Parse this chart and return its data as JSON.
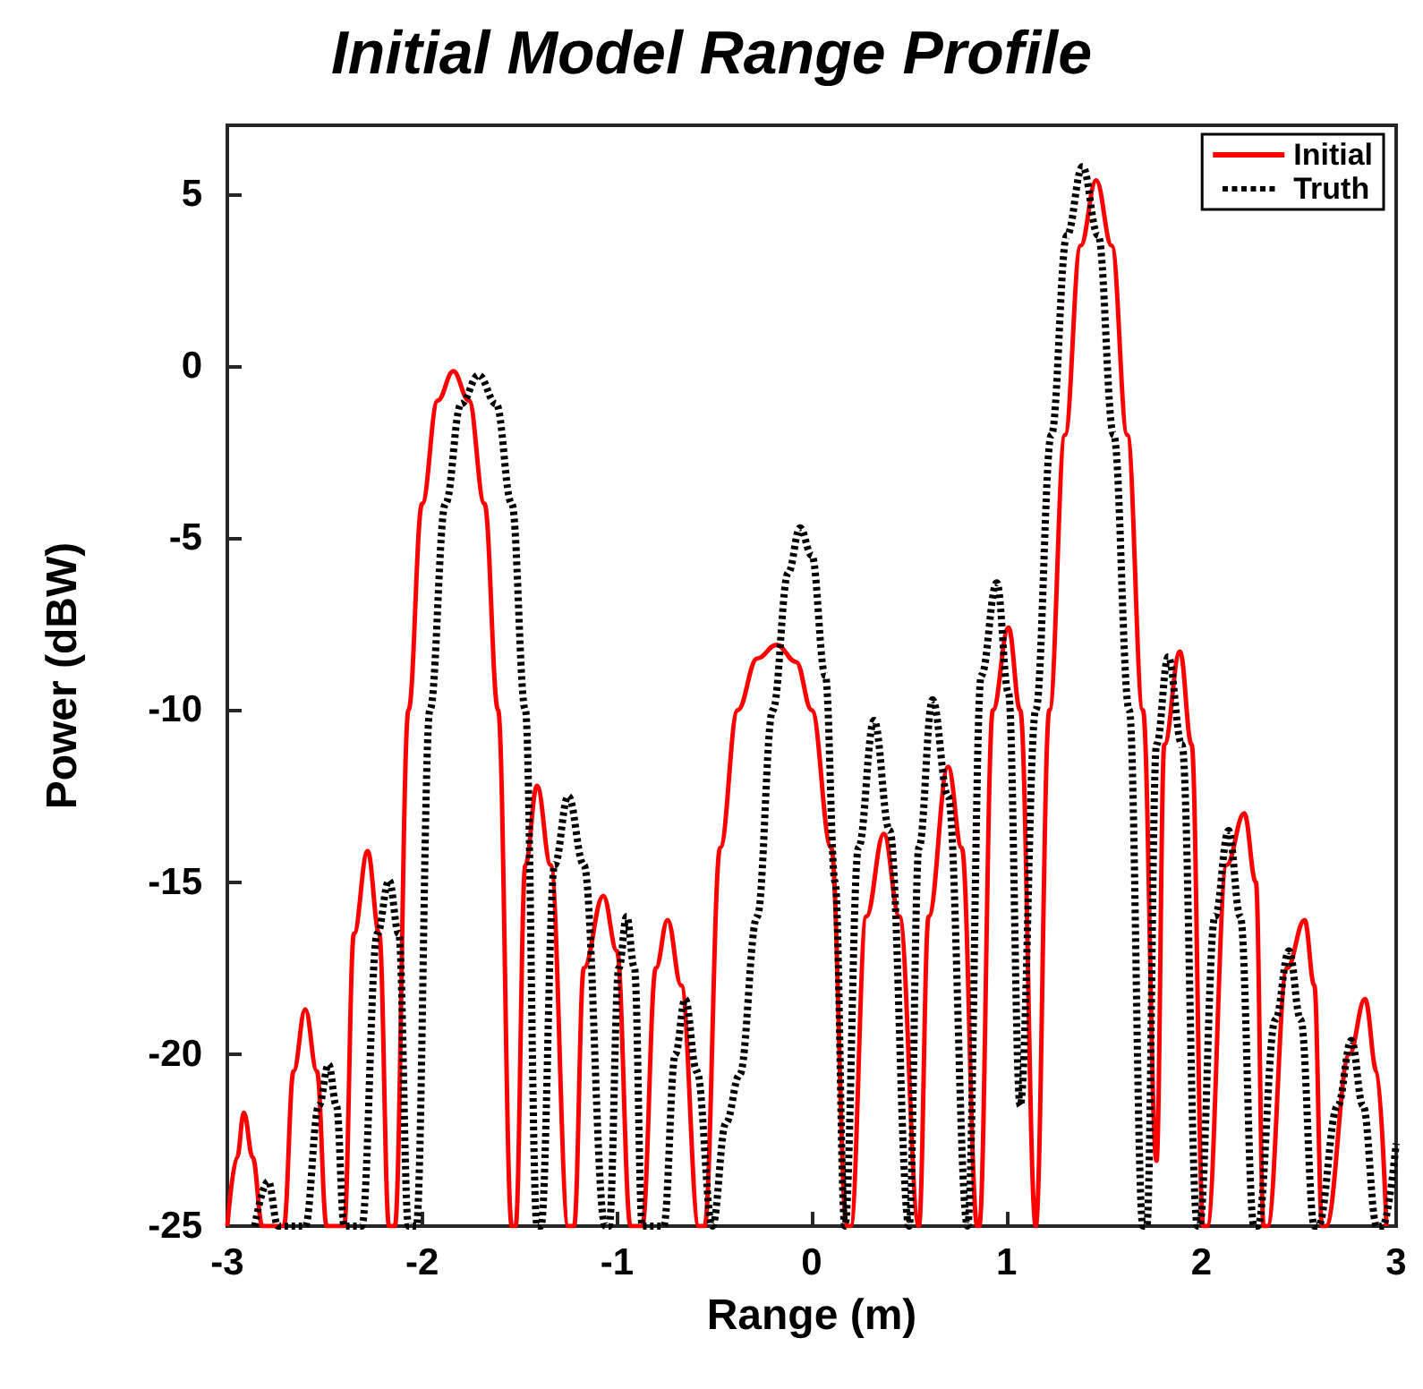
{
  "chart_data": {
    "type": "line",
    "title": "Initial Model Range Profile",
    "xlabel": "Range (m)",
    "ylabel": "Power (dBW)",
    "xlim": [
      -3,
      3
    ],
    "xticks": [
      -3,
      -2,
      -1,
      0,
      1,
      2,
      3
    ],
    "ylim": [
      -25,
      7
    ],
    "yticks": [
      -25,
      -20,
      -15,
      -10,
      -5,
      0,
      5
    ],
    "grid": false,
    "legend": "top right",
    "marker": "none",
    "series": [
      {
        "name": "Initial",
        "color": "#ff0000",
        "line_style": "solid",
        "x": [
          -3.0,
          -2.95,
          -2.915,
          -2.87,
          -2.82,
          -2.71,
          -2.66,
          -2.6,
          -2.54,
          -2.49,
          -2.4,
          -2.35,
          -2.28,
          -2.22,
          -2.17,
          -2.14,
          -2.07,
          -2.0,
          -1.92,
          -1.84,
          -1.76,
          -1.68,
          -1.61,
          -1.54,
          -1.52,
          -1.47,
          -1.41,
          -1.34,
          -1.25,
          -1.22,
          -1.17,
          -1.07,
          -1.0,
          -0.93,
          -0.87,
          -0.8,
          -0.74,
          -0.67,
          -0.58,
          -0.55,
          -0.47,
          -0.38,
          -0.28,
          -0.18,
          -0.08,
          0.0,
          0.1,
          0.18,
          0.2,
          0.28,
          0.37,
          0.45,
          0.55,
          0.6,
          0.7,
          0.77,
          0.85,
          0.86,
          0.93,
          1.01,
          1.07,
          1.15,
          1.22,
          1.3,
          1.38,
          1.46,
          1.54,
          1.62,
          1.7,
          1.77,
          1.81,
          1.89,
          1.95,
          2.01,
          2.03,
          2.13,
          2.22,
          2.28,
          2.32,
          2.34,
          2.44,
          2.53,
          2.58,
          2.62,
          2.64,
          2.76,
          2.84,
          2.9,
          2.95
        ],
        "values": [
          -25,
          -23,
          -21.7,
          -23,
          -25,
          -25,
          -20.5,
          -18.7,
          -20.5,
          -25,
          -25,
          -16.5,
          -14.1,
          -16.5,
          -25,
          -25,
          -10,
          -4,
          -1,
          -0.15,
          -1,
          -4,
          -10,
          -25,
          -25,
          -14.5,
          -12.2,
          -14.5,
          -25,
          -25,
          -17.5,
          -15.4,
          -17,
          -25,
          -25,
          -17.5,
          -16.1,
          -18,
          -25,
          -25,
          -14,
          -10,
          -8.5,
          -8.1,
          -8.6,
          -10,
          -14,
          -25,
          -25,
          -16,
          -13.6,
          -16,
          -25,
          -16,
          -11.65,
          -14,
          -25,
          -25,
          -10,
          -7.6,
          -10,
          -25,
          -10,
          -2,
          3.5,
          5.4,
          3.5,
          -2,
          -10,
          -23.1,
          -11,
          -8.3,
          -11,
          -25,
          -25,
          -14.5,
          -13,
          -15,
          -25,
          -25,
          -17.5,
          -16.1,
          -18,
          -25,
          -25,
          -20,
          -18.4,
          -20.5,
          -25
        ]
      },
      {
        "name": "Truth",
        "color": "#000000",
        "line_style": "dotted",
        "x": [
          -2.86,
          -2.79,
          -2.74,
          -2.6,
          -2.53,
          -2.48,
          -2.44,
          -2.4,
          -2.31,
          -2.23,
          -2.17,
          -2.12,
          -2.07,
          -2.03,
          -1.96,
          -1.88,
          -1.8,
          -1.71,
          -1.62,
          -1.54,
          -1.47,
          -1.41,
          -1.39,
          -1.32,
          -1.25,
          -1.17,
          -1.06,
          -1.04,
          -0.99,
          -0.95,
          -0.91,
          -0.87,
          -0.76,
          -0.7,
          -0.65,
          -0.59,
          -0.51,
          -0.44,
          -0.37,
          -0.28,
          -0.2,
          -0.12,
          -0.06,
          0.0,
          0.07,
          0.12,
          0.17,
          0.24,
          0.32,
          0.4,
          0.5,
          0.55,
          0.62,
          0.7,
          0.8,
          0.87,
          0.95,
          1.01,
          1.07,
          1.15,
          1.23,
          1.31,
          1.39,
          1.47,
          1.55,
          1.63,
          1.7,
          1.72,
          1.77,
          1.83,
          1.9,
          1.98,
          1.99,
          2.07,
          2.14,
          2.2,
          2.27,
          2.29,
          2.38,
          2.45,
          2.51,
          2.58,
          2.6,
          2.7,
          2.77,
          2.83,
          2.9,
          2.93,
          3.0
        ],
        "values": [
          -25,
          -23.7,
          -25,
          -25,
          -21.5,
          -20.3,
          -21.5,
          -25,
          -25,
          -16.5,
          -14.95,
          -16.5,
          -25,
          -25,
          -10,
          -4,
          -1.1,
          -0.26,
          -1.1,
          -4,
          -10,
          -25,
          -25,
          -14.5,
          -12.5,
          -14.5,
          -25,
          -25,
          -17.5,
          -16,
          -17.5,
          -25,
          -25,
          -20,
          -18.4,
          -20.5,
          -25,
          -22,
          -20.6,
          -16,
          -10,
          -6,
          -4.7,
          -5.5,
          -9,
          -15,
          -25,
          -14,
          -10.3,
          -13.5,
          -25,
          -14,
          -9.7,
          -12.5,
          -25,
          -9,
          -6.3,
          -9.5,
          -21.5,
          -10,
          -2,
          3.8,
          5.8,
          3.8,
          -2,
          -10,
          -25,
          -25,
          -11,
          -8.45,
          -11,
          -25,
          -25,
          -16,
          -13.5,
          -16,
          -25,
          -25,
          -19,
          -17,
          -19,
          -25,
          -25,
          -21.5,
          -19.6,
          -21.5,
          -25,
          -25,
          -22.6
        ]
      }
    ]
  }
}
